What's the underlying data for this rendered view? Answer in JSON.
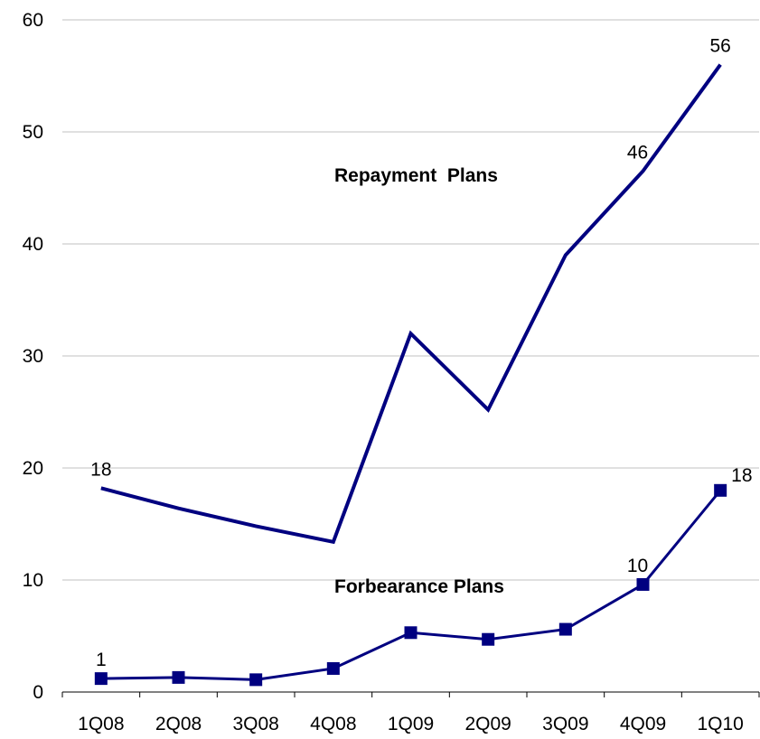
{
  "chart_data": {
    "type": "line",
    "categories": [
      "1Q08",
      "2Q08",
      "3Q08",
      "4Q08",
      "1Q09",
      "2Q09",
      "3Q09",
      "4Q09",
      "1Q10"
    ],
    "ylim": [
      0,
      60
    ],
    "yticks": [
      "0",
      "10",
      "20",
      "30",
      "40",
      "50",
      "60"
    ],
    "grid": true,
    "series": [
      {
        "name": "Repayment  Plans",
        "color": "#000080",
        "marker": "none",
        "values": [
          18.2,
          16.4,
          14.8,
          13.4,
          32.0,
          25.2,
          39.0,
          46.5,
          56.0
        ],
        "data_labels": [
          {
            "index": 0,
            "text": "18"
          },
          {
            "index": 7,
            "text": "46"
          },
          {
            "index": 8,
            "text": "56"
          }
        ]
      },
      {
        "name": "Forbearance Plans",
        "color": "#000080",
        "marker": "square",
        "values": [
          1.2,
          1.3,
          1.1,
          2.1,
          5.3,
          4.7,
          5.6,
          9.6,
          18.0
        ],
        "data_labels": [
          {
            "index": 0,
            "text": "1"
          },
          {
            "index": 7,
            "text": "10"
          },
          {
            "index": 8,
            "text": "18"
          }
        ]
      }
    ]
  }
}
